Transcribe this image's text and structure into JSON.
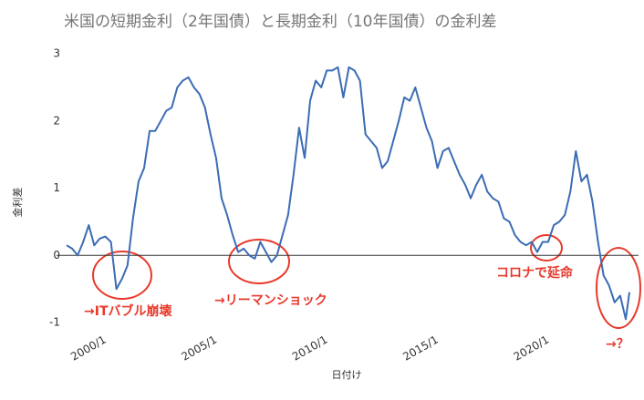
{
  "chart_data": {
    "type": "line",
    "title": "米国の短期金利（2年国債）と長期金利（10年国債）の金利差",
    "x_label": "日付け",
    "y_label": "金利差",
    "x": [
      "1998/4",
      "1998/7",
      "1998/10",
      "1999/1",
      "1999/4",
      "1999/7",
      "1999/10",
      "2000/1",
      "2000/4",
      "2000/7",
      "2000/10",
      "2001/1",
      "2001/4",
      "2001/7",
      "2001/10",
      "2002/1",
      "2002/4",
      "2002/7",
      "2002/10",
      "2003/1",
      "2003/4",
      "2003/7",
      "2003/10",
      "2004/1",
      "2004/4",
      "2004/7",
      "2004/10",
      "2005/1",
      "2005/4",
      "2005/7",
      "2005/10",
      "2006/1",
      "2006/4",
      "2006/7",
      "2006/10",
      "2007/1",
      "2007/4",
      "2007/7",
      "2007/10",
      "2008/1",
      "2008/4",
      "2008/7",
      "2008/10",
      "2009/1",
      "2009/4",
      "2009/7",
      "2009/10",
      "2010/1",
      "2010/4",
      "2010/7",
      "2010/10",
      "2011/1",
      "2011/4",
      "2011/7",
      "2011/10",
      "2012/1",
      "2012/4",
      "2012/7",
      "2012/10",
      "2013/1",
      "2013/4",
      "2013/7",
      "2013/10",
      "2014/1",
      "2014/4",
      "2014/7",
      "2014/10",
      "2015/1",
      "2015/4",
      "2015/7",
      "2015/10",
      "2016/1",
      "2016/4",
      "2016/7",
      "2016/10",
      "2017/1",
      "2017/4",
      "2017/7",
      "2017/10",
      "2018/1",
      "2018/4",
      "2018/7",
      "2018/10",
      "2019/1",
      "2019/4",
      "2019/7",
      "2019/10",
      "2020/1",
      "2020/4",
      "2020/7",
      "2020/10",
      "2021/1",
      "2021/4",
      "2021/7",
      "2021/10",
      "2022/1",
      "2022/4",
      "2022/7",
      "2022/10",
      "2023/1",
      "2023/4",
      "2023/7",
      "2023/9"
    ],
    "series": [
      {
        "name": "金利差",
        "color": "#3b6cb4",
        "values": [
          0.15,
          0.1,
          0.0,
          0.2,
          0.45,
          0.15,
          0.25,
          0.28,
          0.2,
          -0.5,
          -0.35,
          -0.15,
          0.55,
          1.1,
          1.3,
          1.85,
          1.85,
          2.0,
          2.15,
          2.2,
          2.5,
          2.6,
          2.65,
          2.5,
          2.4,
          2.2,
          1.8,
          1.45,
          0.85,
          0.6,
          0.3,
          0.05,
          0.1,
          0.0,
          -0.05,
          0.2,
          0.05,
          -0.1,
          0.0,
          0.3,
          0.6,
          1.2,
          1.9,
          1.45,
          2.3,
          2.6,
          2.5,
          2.75,
          2.75,
          2.8,
          2.35,
          2.8,
          2.75,
          2.6,
          1.8,
          1.7,
          1.6,
          1.3,
          1.4,
          1.7,
          2.0,
          2.35,
          2.3,
          2.5,
          2.2,
          1.9,
          1.7,
          1.3,
          1.55,
          1.6,
          1.4,
          1.2,
          1.05,
          0.85,
          1.05,
          1.2,
          0.95,
          0.85,
          0.8,
          0.55,
          0.5,
          0.3,
          0.2,
          0.15,
          0.2,
          0.05,
          0.2,
          0.2,
          0.45,
          0.5,
          0.6,
          0.95,
          1.55,
          1.1,
          1.2,
          0.8,
          0.2,
          -0.3,
          -0.45,
          -0.7,
          -0.6,
          -0.95,
          -0.55
        ]
      }
    ],
    "xlim": [
      "1998/4",
      "2023/9"
    ],
    "xticks": [
      "2000/1",
      "2005/1",
      "2010/1",
      "2015/1",
      "2020/1"
    ],
    "ylim": [
      -1,
      3
    ],
    "yticks": [
      -1,
      0,
      1,
      2,
      3
    ],
    "grid": false,
    "annotations": [
      "→ITバブル崩壊",
      "→リーマンショック",
      "コロナで延命",
      "→？"
    ]
  }
}
